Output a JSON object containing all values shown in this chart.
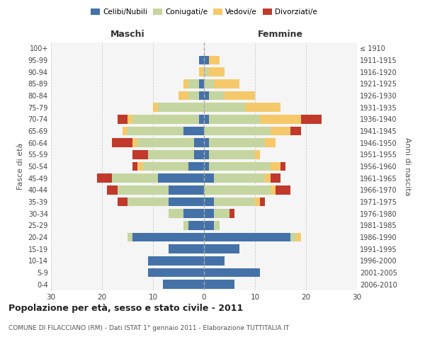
{
  "age_groups": [
    "0-4",
    "5-9",
    "10-14",
    "15-19",
    "20-24",
    "25-29",
    "30-34",
    "35-39",
    "40-44",
    "45-49",
    "50-54",
    "55-59",
    "60-64",
    "65-69",
    "70-74",
    "75-79",
    "80-84",
    "85-89",
    "90-94",
    "95-99",
    "100+"
  ],
  "birth_years": [
    "2006-2010",
    "2001-2005",
    "1996-2000",
    "1991-1995",
    "1986-1990",
    "1981-1985",
    "1976-1980",
    "1971-1975",
    "1966-1970",
    "1961-1965",
    "1956-1960",
    "1951-1955",
    "1946-1950",
    "1941-1945",
    "1936-1940",
    "1931-1935",
    "1926-1930",
    "1921-1925",
    "1916-1920",
    "1911-1915",
    "≤ 1910"
  ],
  "maschi": {
    "celibi": [
      8,
      11,
      11,
      7,
      14,
      3,
      4,
      7,
      7,
      9,
      3,
      2,
      2,
      4,
      1,
      0,
      1,
      1,
      0,
      1,
      0
    ],
    "coniugati": [
      0,
      0,
      0,
      0,
      1,
      1,
      3,
      8,
      10,
      9,
      9,
      9,
      11,
      11,
      13,
      9,
      2,
      2,
      0,
      0,
      0
    ],
    "vedovi": [
      0,
      0,
      0,
      0,
      0,
      0,
      0,
      0,
      0,
      0,
      1,
      0,
      1,
      1,
      1,
      1,
      2,
      1,
      1,
      0,
      0
    ],
    "divorziati": [
      0,
      0,
      0,
      0,
      0,
      0,
      0,
      2,
      2,
      3,
      1,
      3,
      4,
      0,
      2,
      0,
      0,
      0,
      0,
      0,
      0
    ]
  },
  "femmine": {
    "nubili": [
      6,
      11,
      4,
      7,
      17,
      2,
      2,
      2,
      0,
      2,
      1,
      1,
      1,
      0,
      1,
      0,
      1,
      0,
      0,
      1,
      0
    ],
    "coniugate": [
      0,
      0,
      0,
      0,
      1,
      1,
      3,
      8,
      13,
      10,
      12,
      9,
      11,
      13,
      10,
      8,
      3,
      2,
      1,
      0,
      0
    ],
    "vedove": [
      0,
      0,
      0,
      0,
      1,
      0,
      0,
      1,
      1,
      1,
      2,
      1,
      2,
      4,
      8,
      7,
      6,
      5,
      3,
      2,
      0
    ],
    "divorziate": [
      0,
      0,
      0,
      0,
      0,
      0,
      1,
      1,
      3,
      2,
      1,
      0,
      0,
      2,
      4,
      0,
      0,
      0,
      0,
      0,
      0
    ]
  },
  "colors": {
    "celibi": "#4472a8",
    "coniugati": "#c5d5a0",
    "vedovi": "#f5c96a",
    "divorziati": "#c0392b"
  },
  "xlim": 30,
  "title": "Popolazione per età, sesso e stato civile - 2011",
  "subtitle": "COMUNE DI FILACCIANO (RM) - Dati ISTAT 1° gennaio 2011 - Elaborazione TUTTITALIA.IT",
  "ylabel_left": "Fasce di età",
  "ylabel_right": "Anni di nascita",
  "xlabel_left": "Maschi",
  "xlabel_right": "Femmine"
}
